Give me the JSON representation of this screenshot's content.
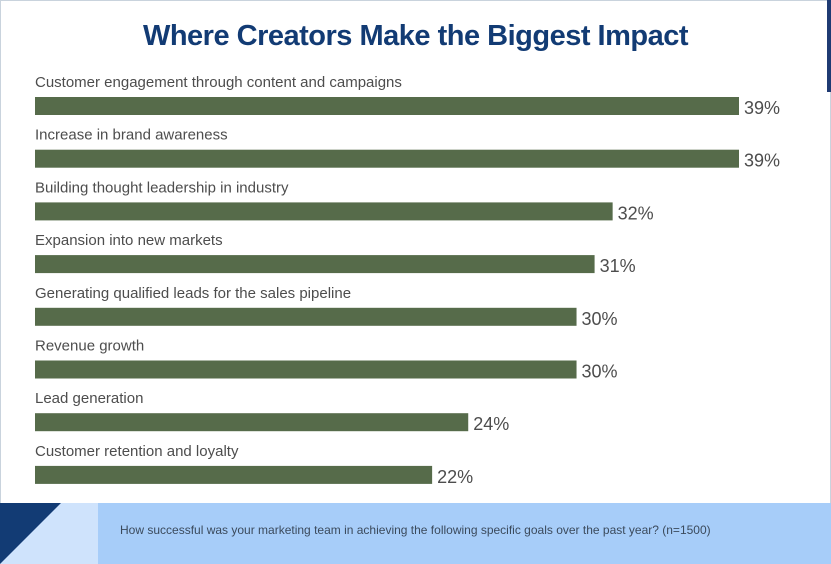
{
  "title": "Where Creators Make the Biggest Impact",
  "footnote": "How successful was your marketing team in achieving the following specific goals over the past year? (n=1500)",
  "colors": {
    "bar": "#566b4a",
    "title": "#123b74",
    "footer": "#a7cdf9"
  },
  "chart_data": {
    "type": "bar",
    "orientation": "horizontal",
    "title": "Where Creators Make the Biggest Impact",
    "categories": [
      "Customer engagement through content and campaigns",
      "Increase in brand awareness",
      "Building thought leadership in industry",
      "Expansion into new markets",
      "Generating qualified leads for the sales pipeline",
      "Revenue growth",
      "Lead generation",
      "Customer retention and loyalty"
    ],
    "values": [
      39,
      39,
      32,
      31,
      30,
      30,
      24,
      22
    ],
    "value_labels": [
      "39%",
      "39%",
      "32%",
      "31%",
      "30%",
      "30%",
      "24%",
      "22%"
    ],
    "unit": "%",
    "grid": false,
    "legend": "none"
  }
}
